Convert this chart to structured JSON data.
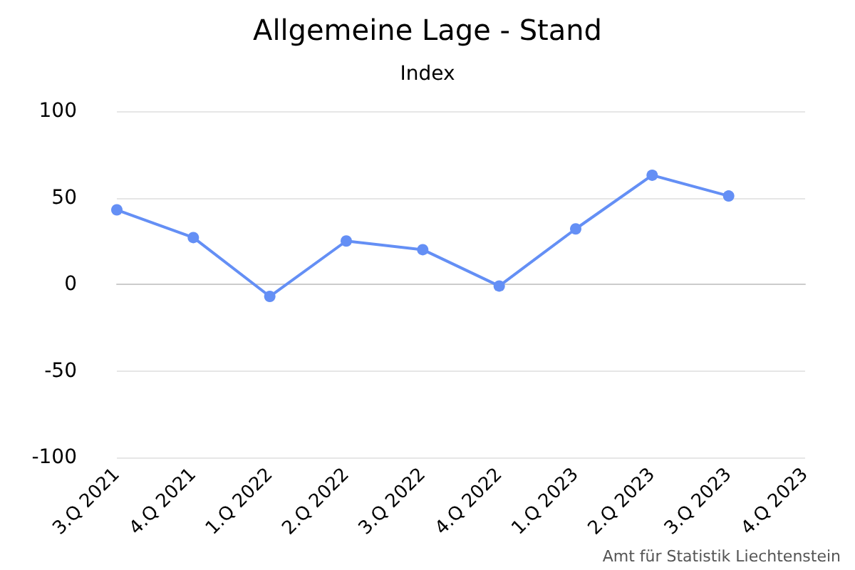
{
  "chart_data": {
    "type": "line",
    "title": "Allgemeine Lage - Stand",
    "subtitle": "Index",
    "categories": [
      "3.Q 2021",
      "4.Q 2021",
      "1.Q 2022",
      "2.Q 2022",
      "3.Q 2022",
      "4.Q 2022",
      "1.Q 2023",
      "2.Q 2023",
      "3.Q 2023",
      "4.Q 2023"
    ],
    "series": [
      {
        "color": "#648ff5",
        "values": [
          43,
          27,
          -7,
          25,
          20,
          -1,
          32,
          63,
          51,
          null
        ]
      }
    ],
    "ylim": [
      -100,
      100
    ],
    "yticks": [
      -100,
      -50,
      0,
      50,
      100
    ],
    "grid": "y",
    "marker": "circle",
    "line_style": "solid",
    "annotations": [
      "Amt für Statistik Liechtenstein"
    ]
  }
}
